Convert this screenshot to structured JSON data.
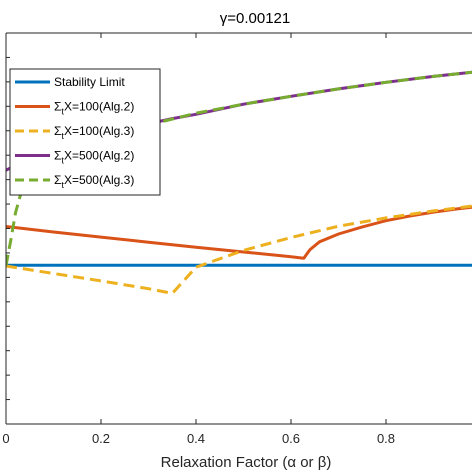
{
  "chart_data": {
    "type": "line",
    "title": "γ=0.00121",
    "xlabel": "Relaxation Factor (α or β)",
    "ylabel": "",
    "xlim": [
      0,
      1
    ],
    "ylim": [
      0,
      1
    ],
    "xticks": [
      0,
      0.2,
      0.4,
      0.6,
      0.8
    ],
    "xtick_labels": [
      "0",
      "0.2",
      "0.4",
      "0.6",
      "0.8"
    ],
    "grid": false,
    "legend_position": "top-left",
    "series": [
      {
        "name": "Stability Limit",
        "color": "#0072BD",
        "dash": "solid",
        "x": [
          0,
          1
        ],
        "y": [
          0.406,
          0.406
        ]
      },
      {
        "name": "Σ_tX=100(Alg.2)",
        "color": "#D95319",
        "dash": "solid",
        "x": [
          0,
          0.1,
          0.2,
          0.3,
          0.4,
          0.5,
          0.6,
          0.627,
          0.64,
          0.66,
          0.7,
          0.75,
          0.8,
          0.85,
          0.9,
          0.95,
          1.0
        ],
        "y": [
          0.505,
          0.491,
          0.478,
          0.465,
          0.452,
          0.44,
          0.428,
          0.424,
          0.446,
          0.466,
          0.486,
          0.504,
          0.52,
          0.532,
          0.542,
          0.55,
          0.557
        ]
      },
      {
        "name": "Σ_tX=100(Alg.3)",
        "color": "#EDB120",
        "dash": "dashed",
        "x": [
          0,
          0.1,
          0.2,
          0.3,
          0.35,
          0.4,
          0.5,
          0.6,
          0.7,
          0.8,
          0.9,
          1.0
        ],
        "y": [
          0.404,
          0.385,
          0.366,
          0.346,
          0.334,
          0.401,
          0.444,
          0.477,
          0.506,
          0.527,
          0.545,
          0.56
        ]
      },
      {
        "name": "Σ_tX=500(Alg.2)",
        "color": "#7E2F8E",
        "dash": "solid",
        "x": [
          0,
          0.03,
          0.06,
          0.1,
          0.15,
          0.2,
          0.25,
          0.3,
          0.35,
          0.4,
          0.5,
          0.6,
          0.7,
          0.8,
          0.9,
          1.0
        ],
        "y": [
          0.649,
          0.667,
          0.683,
          0.7,
          0.717,
          0.735,
          0.753,
          0.768,
          0.781,
          0.792,
          0.818,
          0.838,
          0.857,
          0.874,
          0.889,
          0.902
        ]
      },
      {
        "name": "Σ_tX=500(Alg.3)",
        "color": "#77AC30",
        "dash": "dashed",
        "x": [
          0,
          0.01,
          0.02,
          0.03,
          0.05,
          0.08,
          0.12,
          0.2,
          0.3,
          0.4,
          0.5,
          0.6,
          0.7,
          0.8,
          0.9,
          1.0
        ],
        "y": [
          0.405,
          0.47,
          0.54,
          0.585,
          0.625,
          0.66,
          0.69,
          0.73,
          0.765,
          0.795,
          0.818,
          0.838,
          0.857,
          0.874,
          0.889,
          0.902
        ]
      }
    ],
    "legend": [
      {
        "name": "Stability Limit",
        "main": "Stability Limit",
        "sub": "",
        "rest": ""
      },
      {
        "name": "Σ_tX=100(Alg.2)",
        "main": "Σ",
        "sub": "t",
        "rest": "X=100(Alg.2)"
      },
      {
        "name": "Σ_tX=100(Alg.3)",
        "main": "Σ",
        "sub": "t",
        "rest": "X=100(Alg.3)"
      },
      {
        "name": "Σ_tX=500(Alg.2)",
        "main": "Σ",
        "sub": "t",
        "rest": "X=500(Alg.2)"
      },
      {
        "name": "Σ_tX=500(Alg.3)",
        "main": "Σ",
        "sub": "t",
        "rest": "X=500(Alg.3)"
      }
    ]
  }
}
